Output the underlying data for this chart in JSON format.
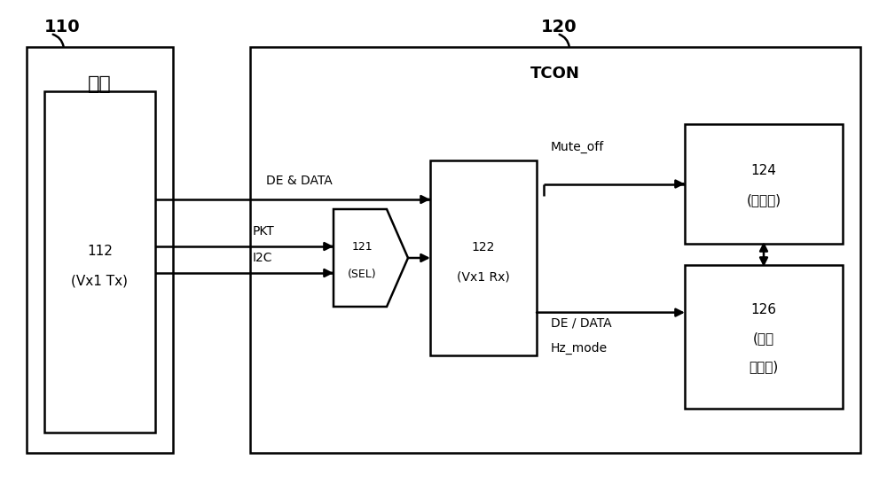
{
  "bg_color": "#ffffff",
  "label_110": "110",
  "label_120": "120",
  "label_jizu": "机组",
  "label_tcon": "TCON",
  "label_112_line1": "112",
  "label_112_line2": "(Vx1 Tx)",
  "label_121_line1": "121",
  "label_121_line2": "(SEL)",
  "label_122_line1": "122",
  "label_122_line2": "(Vx1 Rx)",
  "label_124_line1": "124",
  "label_124_line2": "(控制器)",
  "label_126_line1": "126",
  "label_126_line2": "(图像",
  "label_126_line3": "处理器)",
  "label_de_data": "DE & DATA",
  "label_pkt": "PKT",
  "label_i2c": "I2C",
  "label_mute_off": "Mute_off",
  "label_de_data2_line1": "DE / DATA",
  "label_de_data2_line2": "Hz_mode",
  "text_color": "#000000",
  "line_color": "#000000"
}
